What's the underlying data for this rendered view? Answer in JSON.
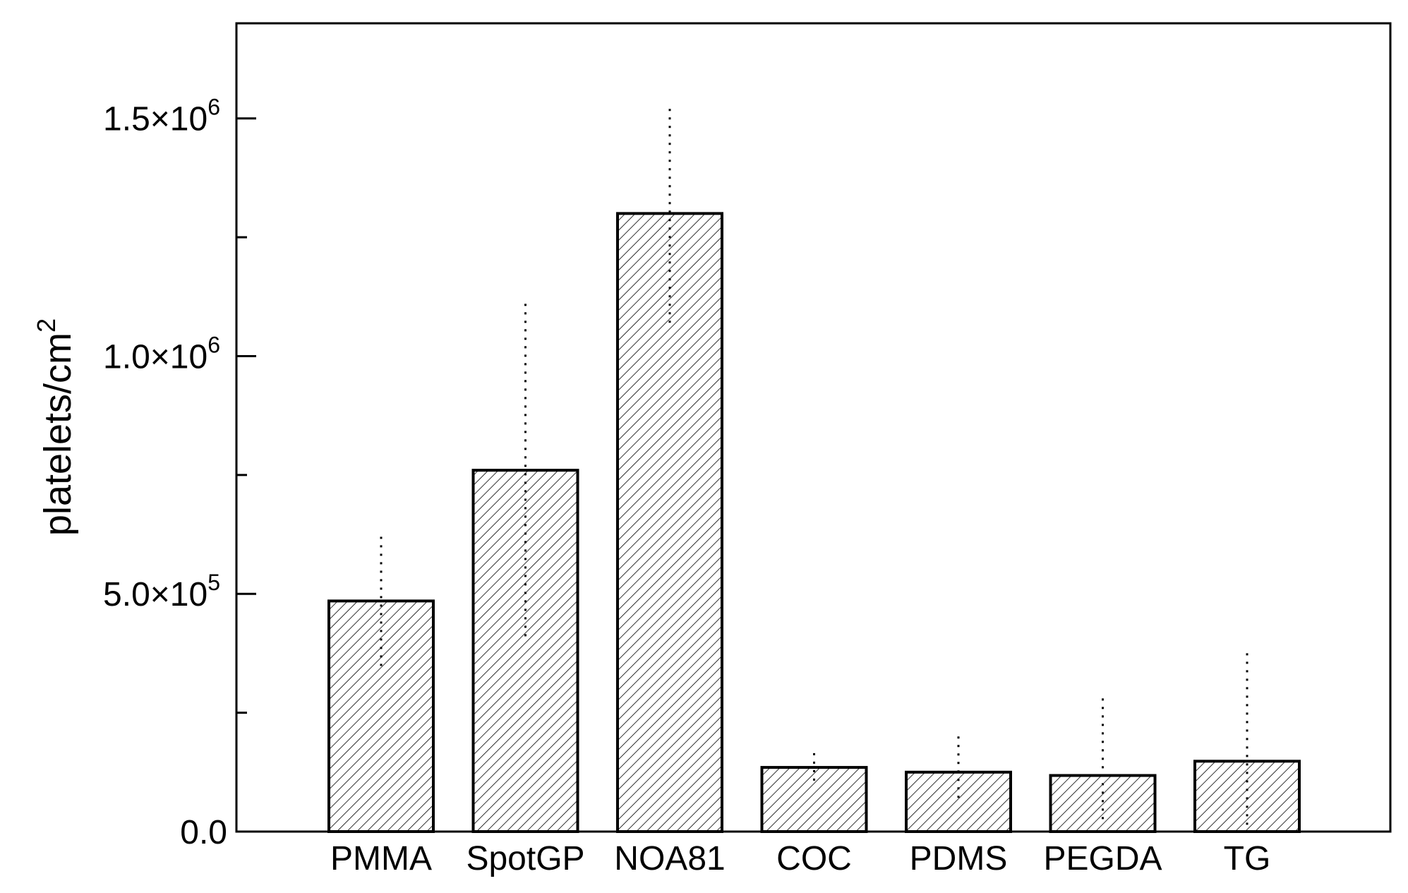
{
  "chart_data": {
    "type": "bar",
    "title": "",
    "xlabel": "",
    "ylabel": "platelets/cm",
    "ylabel_sup": "2",
    "categories": [
      "PMMA",
      "SpotGP",
      "NOA81",
      "COC",
      "PDMS",
      "PEGDA",
      "TG"
    ],
    "values": [
      485000,
      760000,
      1300000,
      135000,
      125000,
      118000,
      148000
    ],
    "error_upper": [
      620000,
      1110000,
      1520000,
      165000,
      200000,
      280000,
      375000
    ],
    "error_lower": [
      340000,
      400000,
      1070000,
      100000,
      70000,
      20000,
      10000
    ],
    "ylim": [
      0,
      1700000
    ],
    "y_ticks": [
      {
        "value": 0,
        "mantissa": "0.0",
        "exp": ""
      },
      {
        "value": 500000,
        "mantissa": "5.0×10",
        "exp": "5"
      },
      {
        "value": 1000000,
        "mantissa": "1.0×10",
        "exp": "6"
      },
      {
        "value": 1500000,
        "mantissa": "1.5×10",
        "exp": "6"
      }
    ],
    "y_minor_ticks": [
      250000,
      750000,
      1250000
    ],
    "bar_fill": "hatched",
    "bar_color": "#000000",
    "grid": false,
    "legend": "none"
  }
}
